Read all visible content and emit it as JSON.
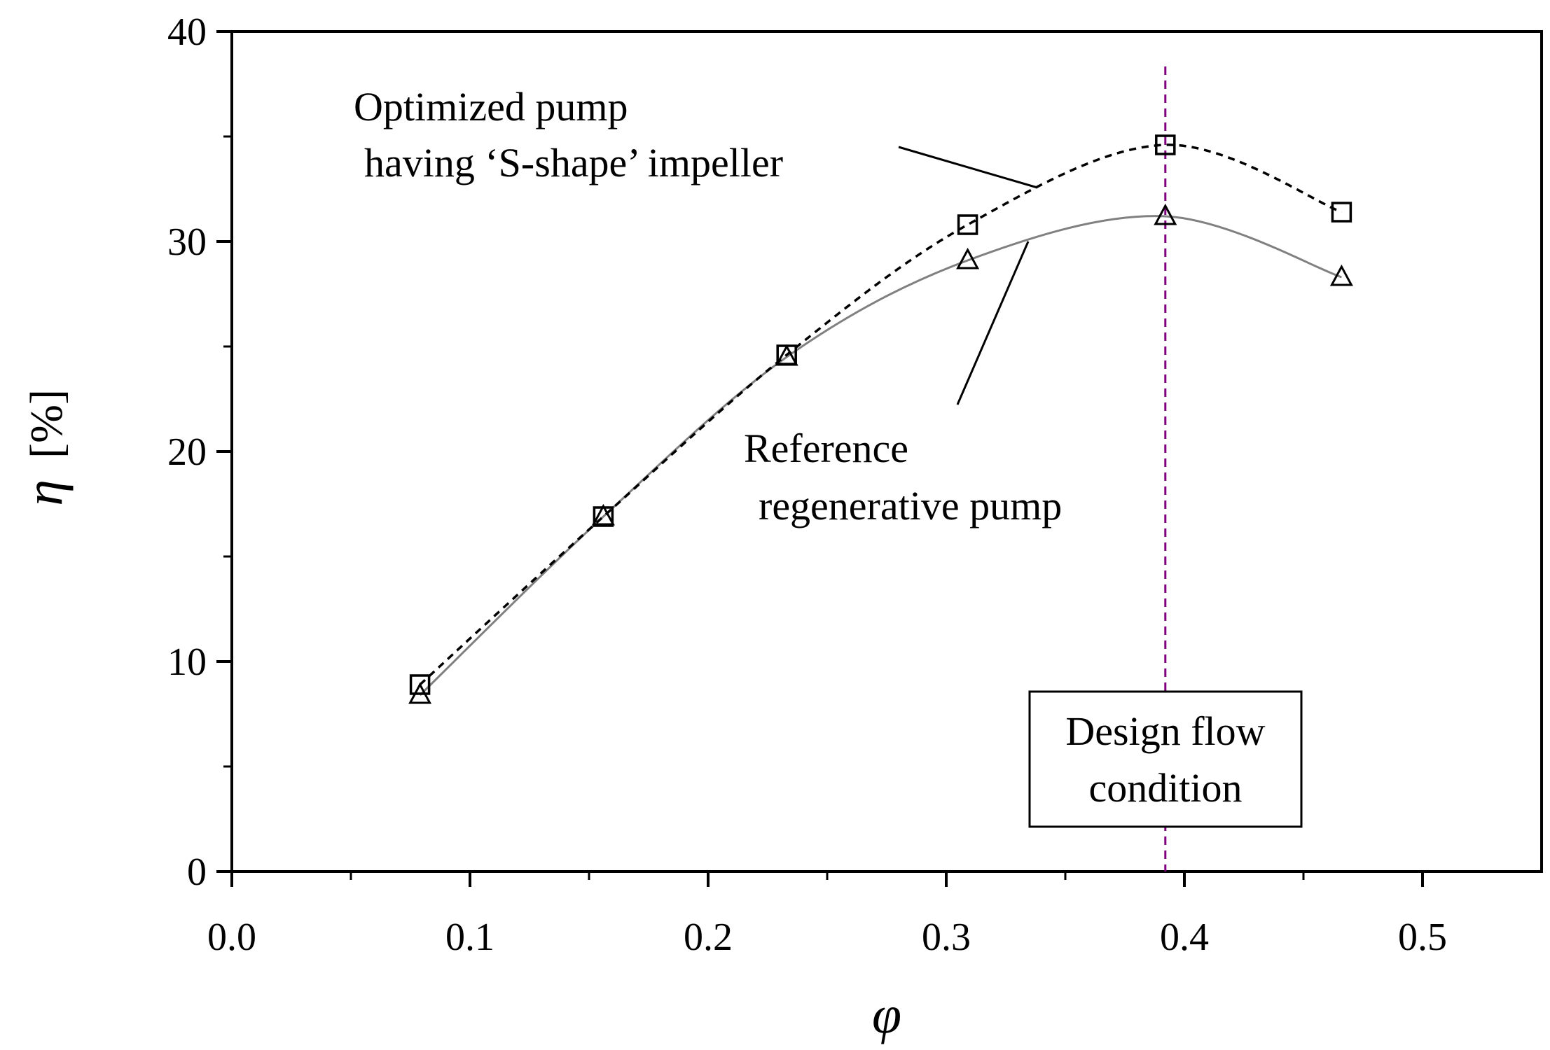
{
  "chart_data": {
    "type": "line",
    "title": "",
    "xlabel": "φ",
    "ylabel": "η",
    "ylabel_unit": "[%]",
    "xlim": [
      0.0,
      0.55
    ],
    "ylim": [
      0,
      40
    ],
    "x_ticks": [
      "0.0",
      "0.1",
      "0.2",
      "0.3",
      "0.4",
      "0.5"
    ],
    "x_tick_values": [
      0.0,
      0.1,
      0.2,
      0.3,
      0.4,
      0.5
    ],
    "y_ticks": [
      "0",
      "10",
      "20",
      "30",
      "40"
    ],
    "y_tick_values": [
      0,
      10,
      20,
      30,
      40
    ],
    "y_minor_step": 5,
    "x_minor_step": 0.05,
    "grid": false,
    "series": [
      {
        "name": "Optimized pump having ‘S-shape’ impeller",
        "marker": "square",
        "line_style": "dashed",
        "color": "#000000",
        "x": [
          0.079,
          0.156,
          0.233,
          0.309,
          0.392,
          0.466
        ],
        "y": [
          8.9,
          16.9,
          24.6,
          30.8,
          34.6,
          31.4
        ]
      },
      {
        "name": "Reference regenerative pump",
        "marker": "triangle",
        "line_style": "solid",
        "color": "#808080",
        "x": [
          0.079,
          0.156,
          0.233,
          0.309,
          0.392,
          0.466
        ],
        "y": [
          8.4,
          16.9,
          24.5,
          29.1,
          31.2,
          28.3
        ]
      }
    ],
    "reference_line": {
      "x": 0.392,
      "color": "#800080",
      "style": "dashed",
      "label_lines": [
        "Design flow",
        "condition"
      ]
    },
    "annotations": [
      {
        "series_index": 0,
        "lines": [
          "Optimized pump",
          "having ‘S-shape’ impeller"
        ],
        "leader_to": [
          0.325,
          32.7
        ],
        "placement": "upper-left of curve"
      },
      {
        "series_index": 1,
        "lines": [
          "Reference",
          "regenerative pump"
        ],
        "leader_to": [
          0.335,
          30.3
        ],
        "placement": "below curve"
      }
    ]
  }
}
